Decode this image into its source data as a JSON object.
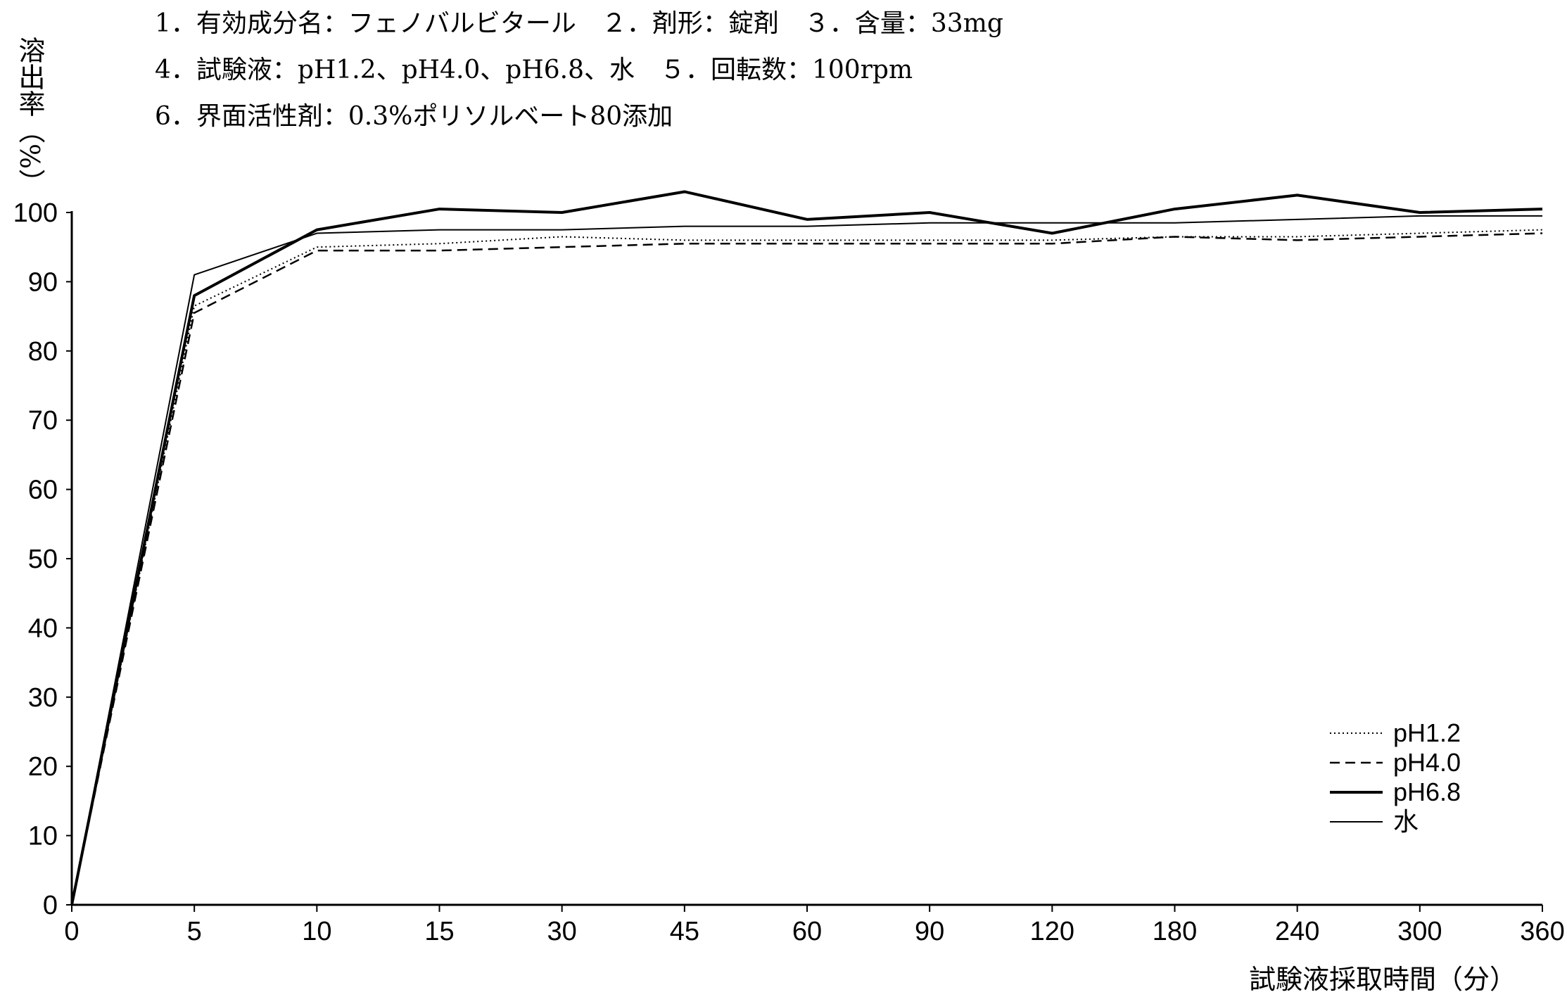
{
  "header": {
    "line1": "1．有効成分名：フェノバルビタール　２．剤形：錠剤　３．含量：33mg",
    "line2": "4．試験液：pH1.2、pH4.0、pH6.8、水　５．回転数：100rpm",
    "line3": "6．界面活性剤：0.3%ポリソルベート80添加"
  },
  "chart_data": {
    "type": "line",
    "title": "",
    "xlabel": "試験液採取時間（分）",
    "ylabel": "溶出率（%）",
    "categories": [
      "0",
      "5",
      "10",
      "15",
      "30",
      "45",
      "60",
      "90",
      "120",
      "180",
      "240",
      "300",
      "360"
    ],
    "ylim": [
      0,
      100
    ],
    "yticks": [
      "0",
      "10",
      "20",
      "30",
      "40",
      "50",
      "60",
      "70",
      "80",
      "90",
      "100"
    ],
    "grid": false,
    "legend_position": "bottom-right",
    "series": [
      {
        "name": "pH1.2",
        "style": "dotted",
        "values": [
          0,
          86.5,
          95.0,
          95.5,
          96.5,
          96.0,
          96.0,
          96.0,
          96.0,
          96.5,
          96.5,
          97.0,
          97.5
        ]
      },
      {
        "name": "pH4.0",
        "style": "dashed",
        "values": [
          0,
          85.5,
          94.5,
          94.5,
          95.0,
          95.5,
          95.5,
          95.5,
          95.5,
          96.5,
          96.0,
          96.5,
          97.0
        ]
      },
      {
        "name": "pH6.8",
        "style": "thick",
        "values": [
          0,
          88.0,
          97.5,
          100.5,
          100.0,
          103.0,
          99.0,
          100.0,
          97.0,
          100.5,
          102.5,
          100.0,
          100.5
        ]
      },
      {
        "name": "水",
        "style": "thin",
        "values": [
          0,
          91.0,
          97.0,
          97.5,
          97.5,
          98.0,
          98.0,
          98.5,
          98.5,
          98.5,
          99.0,
          99.5,
          99.5
        ]
      }
    ]
  }
}
